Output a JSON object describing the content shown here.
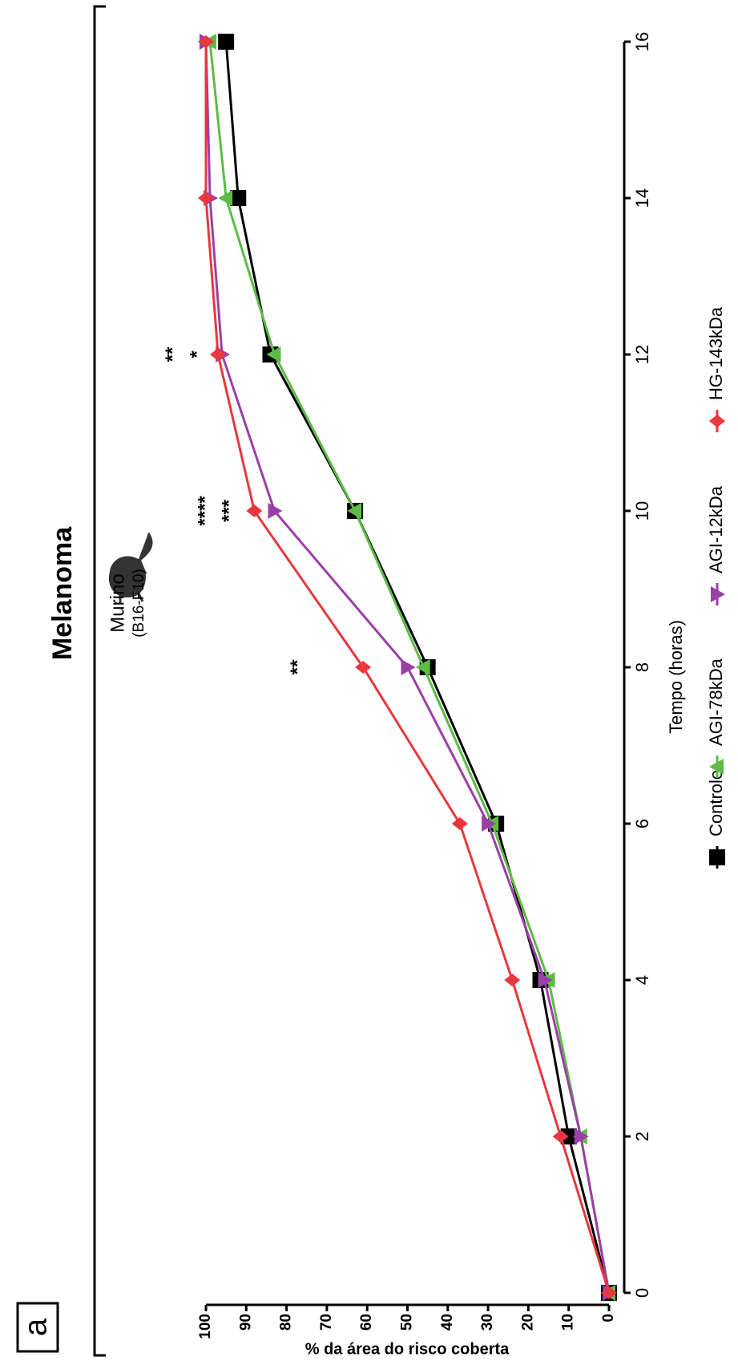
{
  "chart_data": {
    "type": "line",
    "title": "Melanoma",
    "panel_label": "a",
    "subtitle": "Murino",
    "subtitle2": "(B16-F10)",
    "x_label": "Tempo (horas)",
    "y_label": "%  da área do risco coberta",
    "x": [
      0,
      2,
      4,
      6,
      8,
      10,
      12,
      14,
      16
    ],
    "series": [
      {
        "name": "Controle",
        "color": "#000000",
        "marker": "square",
        "values": [
          0,
          10,
          17,
          28,
          45,
          63,
          84,
          92,
          95
        ]
      },
      {
        "name": "AGI-78kDa",
        "color": "#5dbb46",
        "marker": "triangle-up",
        "values": [
          0,
          7,
          15,
          29,
          46,
          63,
          83,
          95,
          99
        ]
      },
      {
        "name": "AGI-12kDa",
        "color": "#9b3fa8",
        "marker": "triangle-down",
        "values": [
          0,
          7,
          16,
          30,
          50,
          83,
          96,
          99,
          100
        ]
      },
      {
        "name": "HG-143kDa",
        "color": "#e8383d",
        "marker": "diamond",
        "values": [
          0,
          12,
          24,
          37,
          61,
          88,
          97,
          100,
          100
        ]
      }
    ],
    "annotations": [
      {
        "text": "**",
        "x": 8,
        "y": 77,
        "color": "#e8383d"
      },
      {
        "text": "****",
        "x": 10,
        "y": 100,
        "color": "#e8383d"
      },
      {
        "text": "***",
        "x": 10,
        "y": 94,
        "color": "#9b3fa8"
      },
      {
        "text": "**",
        "x": 12,
        "y": 108,
        "color": "#e8383d"
      },
      {
        "text": "*",
        "x": 12,
        "y": 102,
        "color": "#9b3fa8"
      }
    ],
    "xlim": [
      0,
      16
    ],
    "xticks": [
      0,
      2,
      4,
      6,
      8,
      10,
      12,
      14,
      16
    ],
    "ylim": [
      0,
      100
    ],
    "yticks": [
      0,
      10,
      20,
      30,
      40,
      50,
      60,
      70,
      80,
      90,
      100
    ]
  }
}
